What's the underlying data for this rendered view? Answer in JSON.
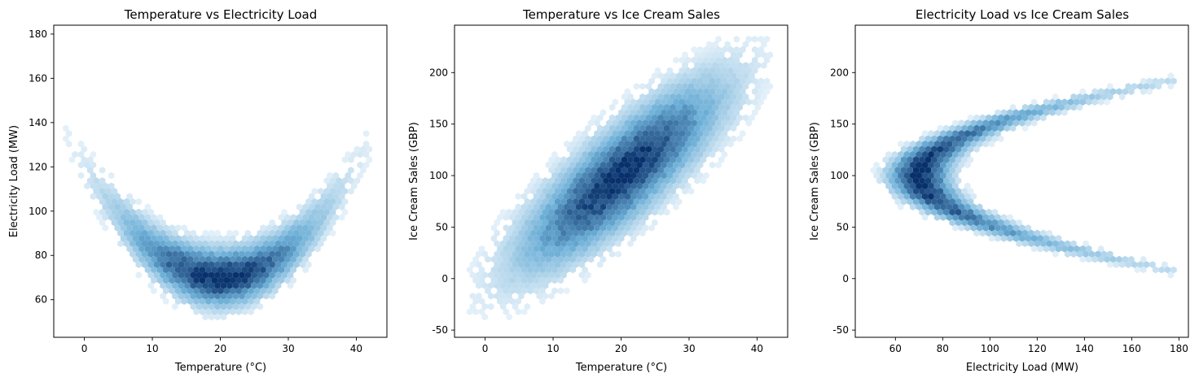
{
  "figure": {
    "colormap": "Blues",
    "colors": {
      "low": "#f7fbff",
      "mid": "#6baed6",
      "high": "#08306b",
      "axis": "#000000",
      "background": "#ffffff"
    }
  },
  "chart_data": [
    {
      "type": "hexbin",
      "title": "Temperature vs Electricity Load",
      "xlabel": "Temperature (°C)",
      "ylabel": "Electricity Load (MW)",
      "xlim": [
        -4.5,
        44.5
      ],
      "ylim": [
        43,
        184
      ],
      "xticks": [
        0,
        10,
        20,
        30,
        40
      ],
      "yticks": [
        60,
        80,
        100,
        120,
        140,
        160,
        180
      ],
      "density": {
        "shape": "quadratic",
        "x_center": 20,
        "x_sd": 7.5,
        "y_center": 70,
        "y_sd": 6.5,
        "curvature": 0.125,
        "support": {
          "x": [
            -3,
            42
          ],
          "y": [
            50,
            180
          ]
        }
      }
    },
    {
      "type": "hexbin",
      "title": "Temperature vs Ice Cream Sales",
      "xlabel": "Temperature (°C)",
      "ylabel": "Ice Cream Sales (GBP)",
      "xlim": [
        -4.5,
        44.5
      ],
      "ylim": [
        -57,
        246
      ],
      "xticks": [
        0,
        10,
        20,
        30,
        40
      ],
      "yticks": [
        -50,
        0,
        50,
        100,
        150,
        200
      ],
      "density": {
        "shape": "linear",
        "x_center": 20,
        "x_sd": 7.5,
        "y_center": 100,
        "y_slope": 5,
        "y_sd": 25,
        "support": {
          "x": [
            -3,
            42
          ],
          "y": [
            -45,
            235
          ]
        }
      }
    },
    {
      "type": "hexbin",
      "title": "Electricity Load vs Ice Cream Sales",
      "xlabel": "Electricity Load (MW)",
      "ylabel": "Ice Cream Sales (GBP)",
      "xlim": [
        43,
        184
      ],
      "ylim": [
        -57,
        246
      ],
      "xticks": [
        60,
        80,
        100,
        120,
        140,
        160,
        180
      ],
      "yticks": [
        -50,
        0,
        50,
        100,
        150,
        200
      ],
      "density": {
        "shape": "crescent",
        "x_base": 70,
        "x_sd": 6.5,
        "y_center": 100,
        "y_sd": 38,
        "curvature": 0.0125,
        "support": {
          "x": [
            50,
            178
          ],
          "y": [
            -45,
            235
          ]
        }
      }
    }
  ]
}
